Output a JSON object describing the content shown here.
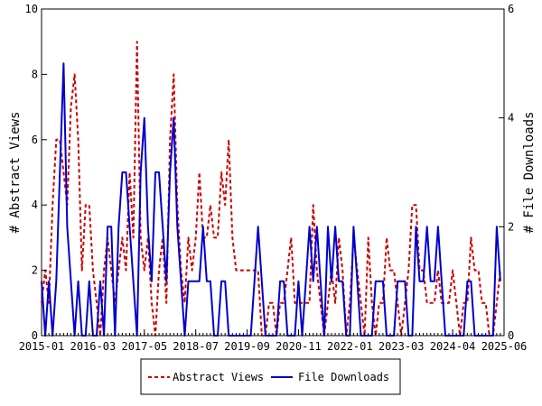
{
  "chart_data": {
    "type": "line",
    "xlabel": "",
    "ylabel_left": "# Abstract Views",
    "ylabel_right": "# File Downloads",
    "x_ticks": [
      "2015-01",
      "2016-03",
      "2017-05",
      "2018-07",
      "2019-09",
      "2020-11",
      "2022-01",
      "2023-03",
      "2024-04",
      "2025-06"
    ],
    "y_left_ticks": [
      "0",
      "2",
      "4",
      "6",
      "8",
      "10"
    ],
    "y_right_ticks": [
      "0",
      "2",
      "4",
      "6"
    ],
    "y_left_range": [
      0,
      10
    ],
    "y_right_range": [
      0,
      6
    ],
    "x_range_months": [
      0,
      126
    ],
    "legend_position": "bottom",
    "grid": false,
    "series": [
      {
        "name": "Abstract Views",
        "axis": "left",
        "color": "#cc0000",
        "style": "dashed",
        "values": [
          1,
          2,
          1,
          4,
          6,
          6,
          5,
          4,
          7,
          8,
          6,
          2,
          4,
          4,
          2,
          1,
          0,
          2,
          3,
          2,
          1,
          2,
          3,
          2,
          5,
          3,
          9,
          3,
          2,
          3,
          1,
          0,
          2,
          3,
          1,
          6,
          8,
          4,
          2,
          1,
          3,
          2,
          3,
          5,
          3,
          3,
          4,
          3,
          3,
          5,
          4,
          6,
          3,
          2,
          2,
          2,
          2,
          2,
          2,
          2,
          0,
          0,
          1,
          1,
          0,
          1,
          1,
          2,
          3,
          1,
          1,
          1,
          1,
          1,
          4,
          2,
          1,
          0,
          1,
          2,
          1,
          3,
          2,
          0,
          1,
          3,
          2,
          1,
          0,
          3,
          1,
          0,
          1,
          1,
          3,
          2,
          2,
          1,
          0,
          1,
          2,
          4,
          4,
          2,
          2,
          1,
          1,
          1,
          2,
          1,
          1,
          1,
          2,
          1,
          0,
          1,
          1,
          3,
          2,
          2,
          1,
          1,
          0,
          0,
          1,
          2
        ]
      },
      {
        "name": "File Downloads",
        "axis": "right",
        "color": "#0000cc",
        "style": "solid",
        "values": [
          1,
          0,
          1,
          0,
          1,
          3,
          5,
          2,
          1,
          0,
          1,
          0,
          0,
          1,
          0,
          0,
          1,
          0,
          2,
          2,
          0,
          2,
          3,
          3,
          2,
          1,
          0,
          3,
          4,
          2,
          1,
          3,
          3,
          2,
          1,
          3,
          4,
          2,
          1,
          0,
          1,
          1,
          1,
          1,
          2,
          1,
          1,
          0,
          0,
          1,
          1,
          0,
          0,
          0,
          0,
          0,
          0,
          0,
          1,
          2,
          1,
          0,
          0,
          0,
          0,
          1,
          1,
          0,
          0,
          0,
          1,
          0,
          1,
          2,
          1,
          2,
          1,
          0,
          2,
          1,
          2,
          1,
          1,
          0,
          0,
          2,
          1,
          0,
          0,
          0,
          0,
          1,
          1,
          1,
          0,
          0,
          0,
          1,
          1,
          1,
          0,
          0,
          2,
          1,
          1,
          2,
          1,
          1,
          2,
          1,
          0,
          0,
          0,
          0,
          0,
          0,
          1,
          1,
          0,
          0,
          0,
          0,
          0,
          0,
          2,
          1
        ]
      }
    ]
  }
}
